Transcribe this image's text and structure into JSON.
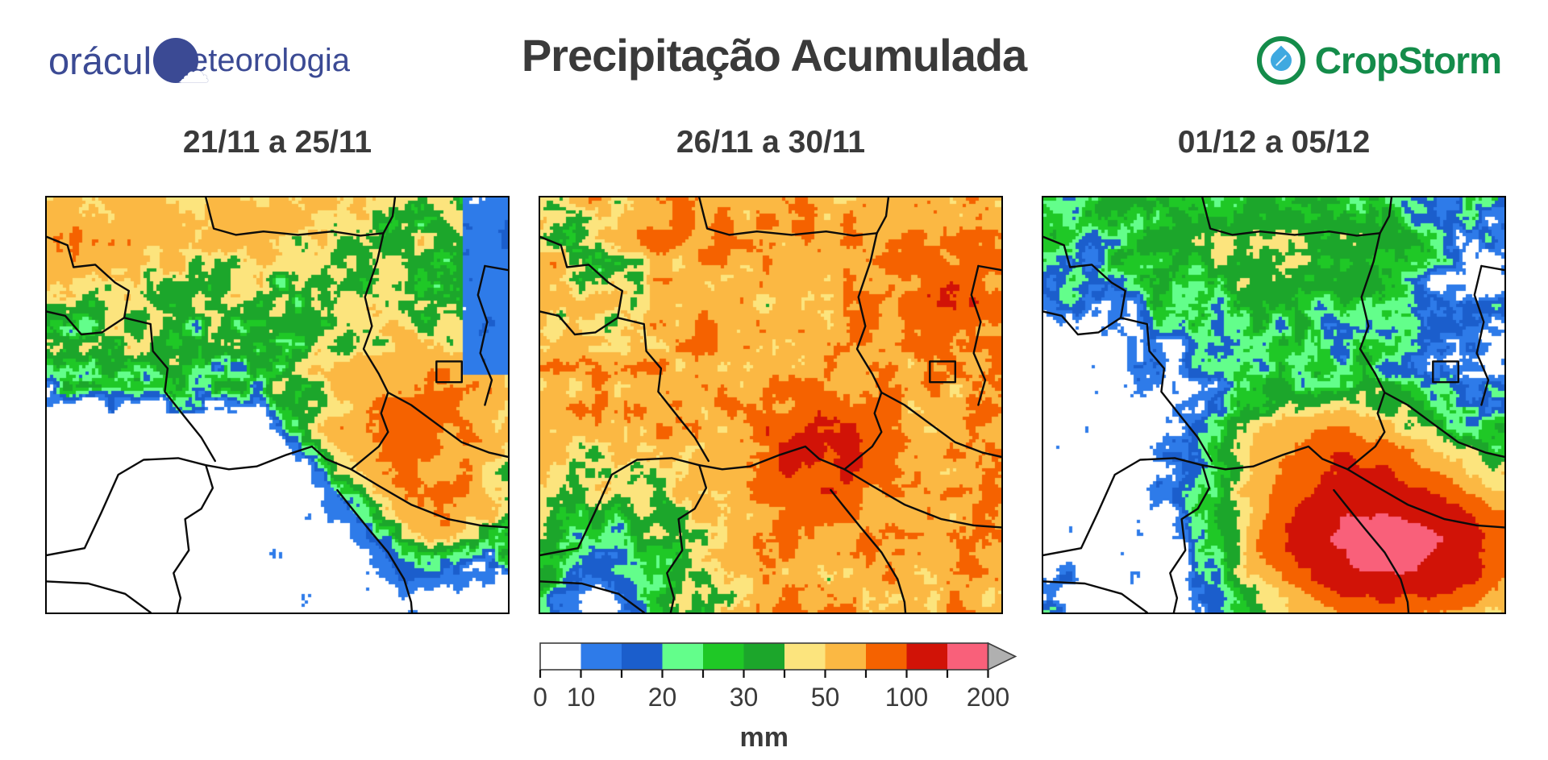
{
  "header": {
    "title": "Precipitação Acumulada",
    "logo_left": {
      "text_start": "orácul",
      "text_end": "eteorologia",
      "brand_color": "#3b4a94"
    },
    "logo_right": {
      "text": "CropStorm",
      "brand_color": "#148c4a",
      "leaf_color": "#3fa9e0"
    }
  },
  "icons": {
    "cloud": "☁"
  },
  "panels": [
    {
      "label": "21/11 a 25/11"
    },
    {
      "label": "26/11 a 30/11"
    },
    {
      "label": "01/12 a 05/12"
    }
  ],
  "chart_data": {
    "type": "heatmap",
    "title": "Precipitação Acumulada",
    "subtitle": "",
    "panels": [
      "21/11 a 25/11",
      "26/11 a 30/11",
      "01/12 a 05/12"
    ],
    "unit": "mm",
    "legend": {
      "stops": [
        0,
        10,
        15,
        20,
        25,
        30,
        40,
        50,
        70,
        100,
        150,
        200
      ],
      "tick_labels": [
        "0",
        "10",
        "20",
        "30",
        "50",
        "100",
        "200"
      ],
      "labeled_stop_indices": [
        0,
        1,
        3,
        5,
        7,
        9,
        11
      ],
      "colors": [
        "#ffffff",
        "#2e7be9",
        "#1b5ecc",
        "#63fe8b",
        "#1fc826",
        "#1ca62b",
        "#fce47d",
        "#fbb843",
        "#f56200",
        "#d11307",
        "#f9607a"
      ],
      "overflow_arrow_color": "#b0b0b0",
      "outline_color": "#3c3c3c",
      "unit_label": "mm",
      "legend_position": "bottom-center"
    },
    "colors_meta": {
      "title_text": "#3a3a3a",
      "map_border": "#000000",
      "state_border": "#0b0b0b"
    }
  }
}
